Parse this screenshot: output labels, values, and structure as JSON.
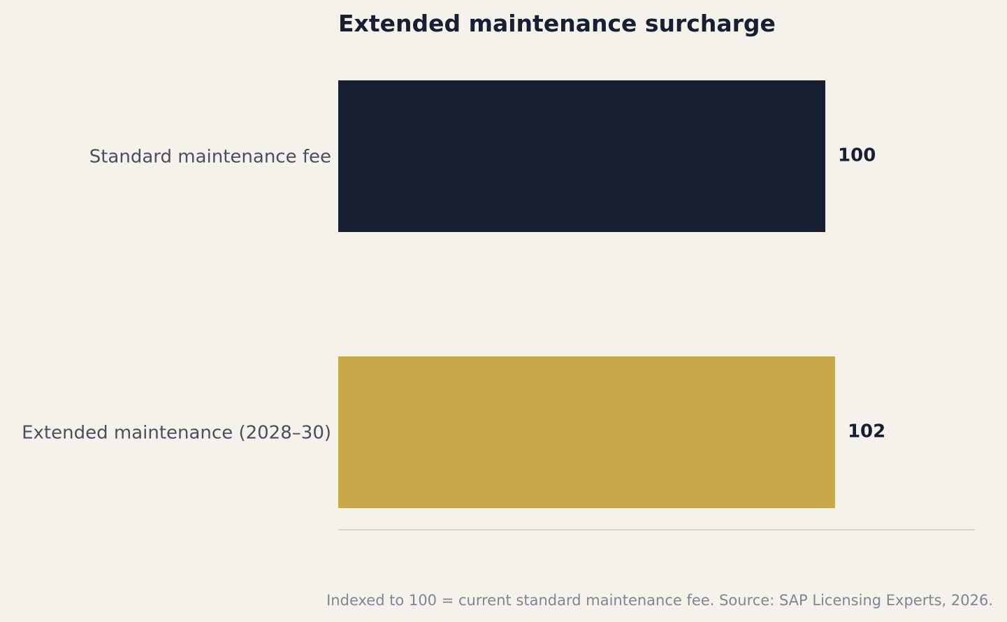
{
  "chart_data": {
    "type": "bar",
    "orientation": "horizontal",
    "title": "Extended maintenance surcharge",
    "categories": [
      "Standard maintenance fee",
      "Extended maintenance (2028–30)"
    ],
    "values": [
      100,
      102
    ],
    "value_labels": [
      "100",
      "102"
    ],
    "colors": [
      "#172033",
      "#c9a84c"
    ],
    "xlim": [
      0,
      130.7
    ],
    "grid": false,
    "legend": "none",
    "note": "Indexed to 100 = current standard maintenance fee. Source: SAP Licensing Experts, 2026."
  },
  "colors": {
    "background": "#f5f1eb",
    "axis_line": "#d9d5ce"
  }
}
